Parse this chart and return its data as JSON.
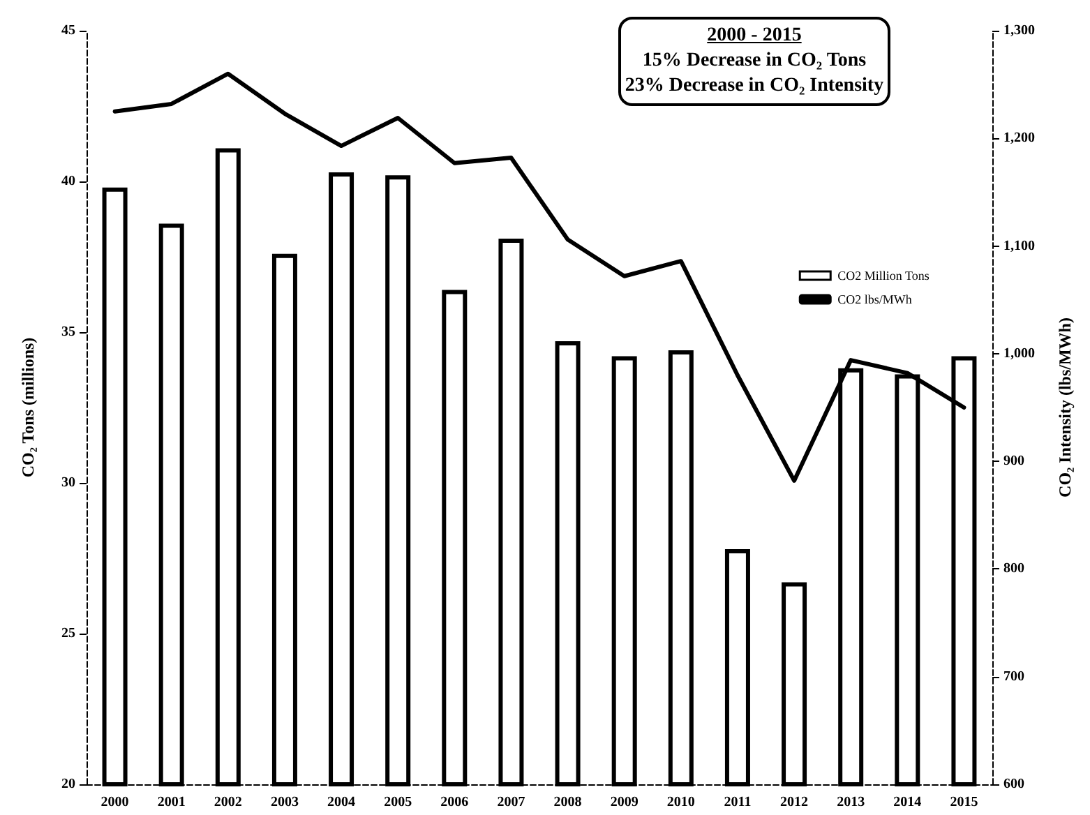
{
  "chart_data": {
    "type": "bar",
    "ylabel": "CO₂ Tons (millions)",
    "y2label": "CO₂ Intensity (lbs/MWh)",
    "annotations": [
      "2000 - 2015",
      "15% Decrease in CO₂ Tons",
      "23% Decrease in CO₂ Intensity"
    ],
    "categories": [
      "2000",
      "2001",
      "2002",
      "2003",
      "2004",
      "2005",
      "2006",
      "2007",
      "2008",
      "2009",
      "2010",
      "2011",
      "2012",
      "2013",
      "2014",
      "2015"
    ],
    "series": [
      {
        "name": "CO2 Million Tons",
        "color": "#ffffff",
        "values": [
          39.8,
          38.6,
          41.1,
          37.6,
          40.3,
          40.2,
          36.4,
          38.1,
          34.7,
          34.2,
          34.4,
          27.8,
          26.7,
          33.8,
          33.6,
          34.2
        ]
      },
      {
        "name": "CO2 lbs/MWh",
        "type": "line",
        "axis": "y2",
        "color": "#000000",
        "values": [
          1225,
          1232,
          1260,
          1223,
          1193,
          1219,
          1177,
          1182,
          1106,
          1072,
          1086,
          980,
          882,
          994,
          982,
          950
        ]
      }
    ],
    "ylim": [
      20,
      45
    ],
    "yticks": [
      20,
      25,
      30,
      35,
      40,
      45
    ],
    "y2lim": [
      600,
      1300
    ],
    "y2ticks": [
      600,
      700,
      800,
      900,
      {
        "value": 1000,
        "label": "1,000"
      },
      {
        "value": 1100,
        "label": "1,100"
      },
      {
        "value": 1200,
        "label": "1,200"
      },
      {
        "value": 1300,
        "label": "1,300"
      }
    ],
    "grid": false,
    "legend": "right",
    "marker": "none",
    "line_style": "solid"
  }
}
